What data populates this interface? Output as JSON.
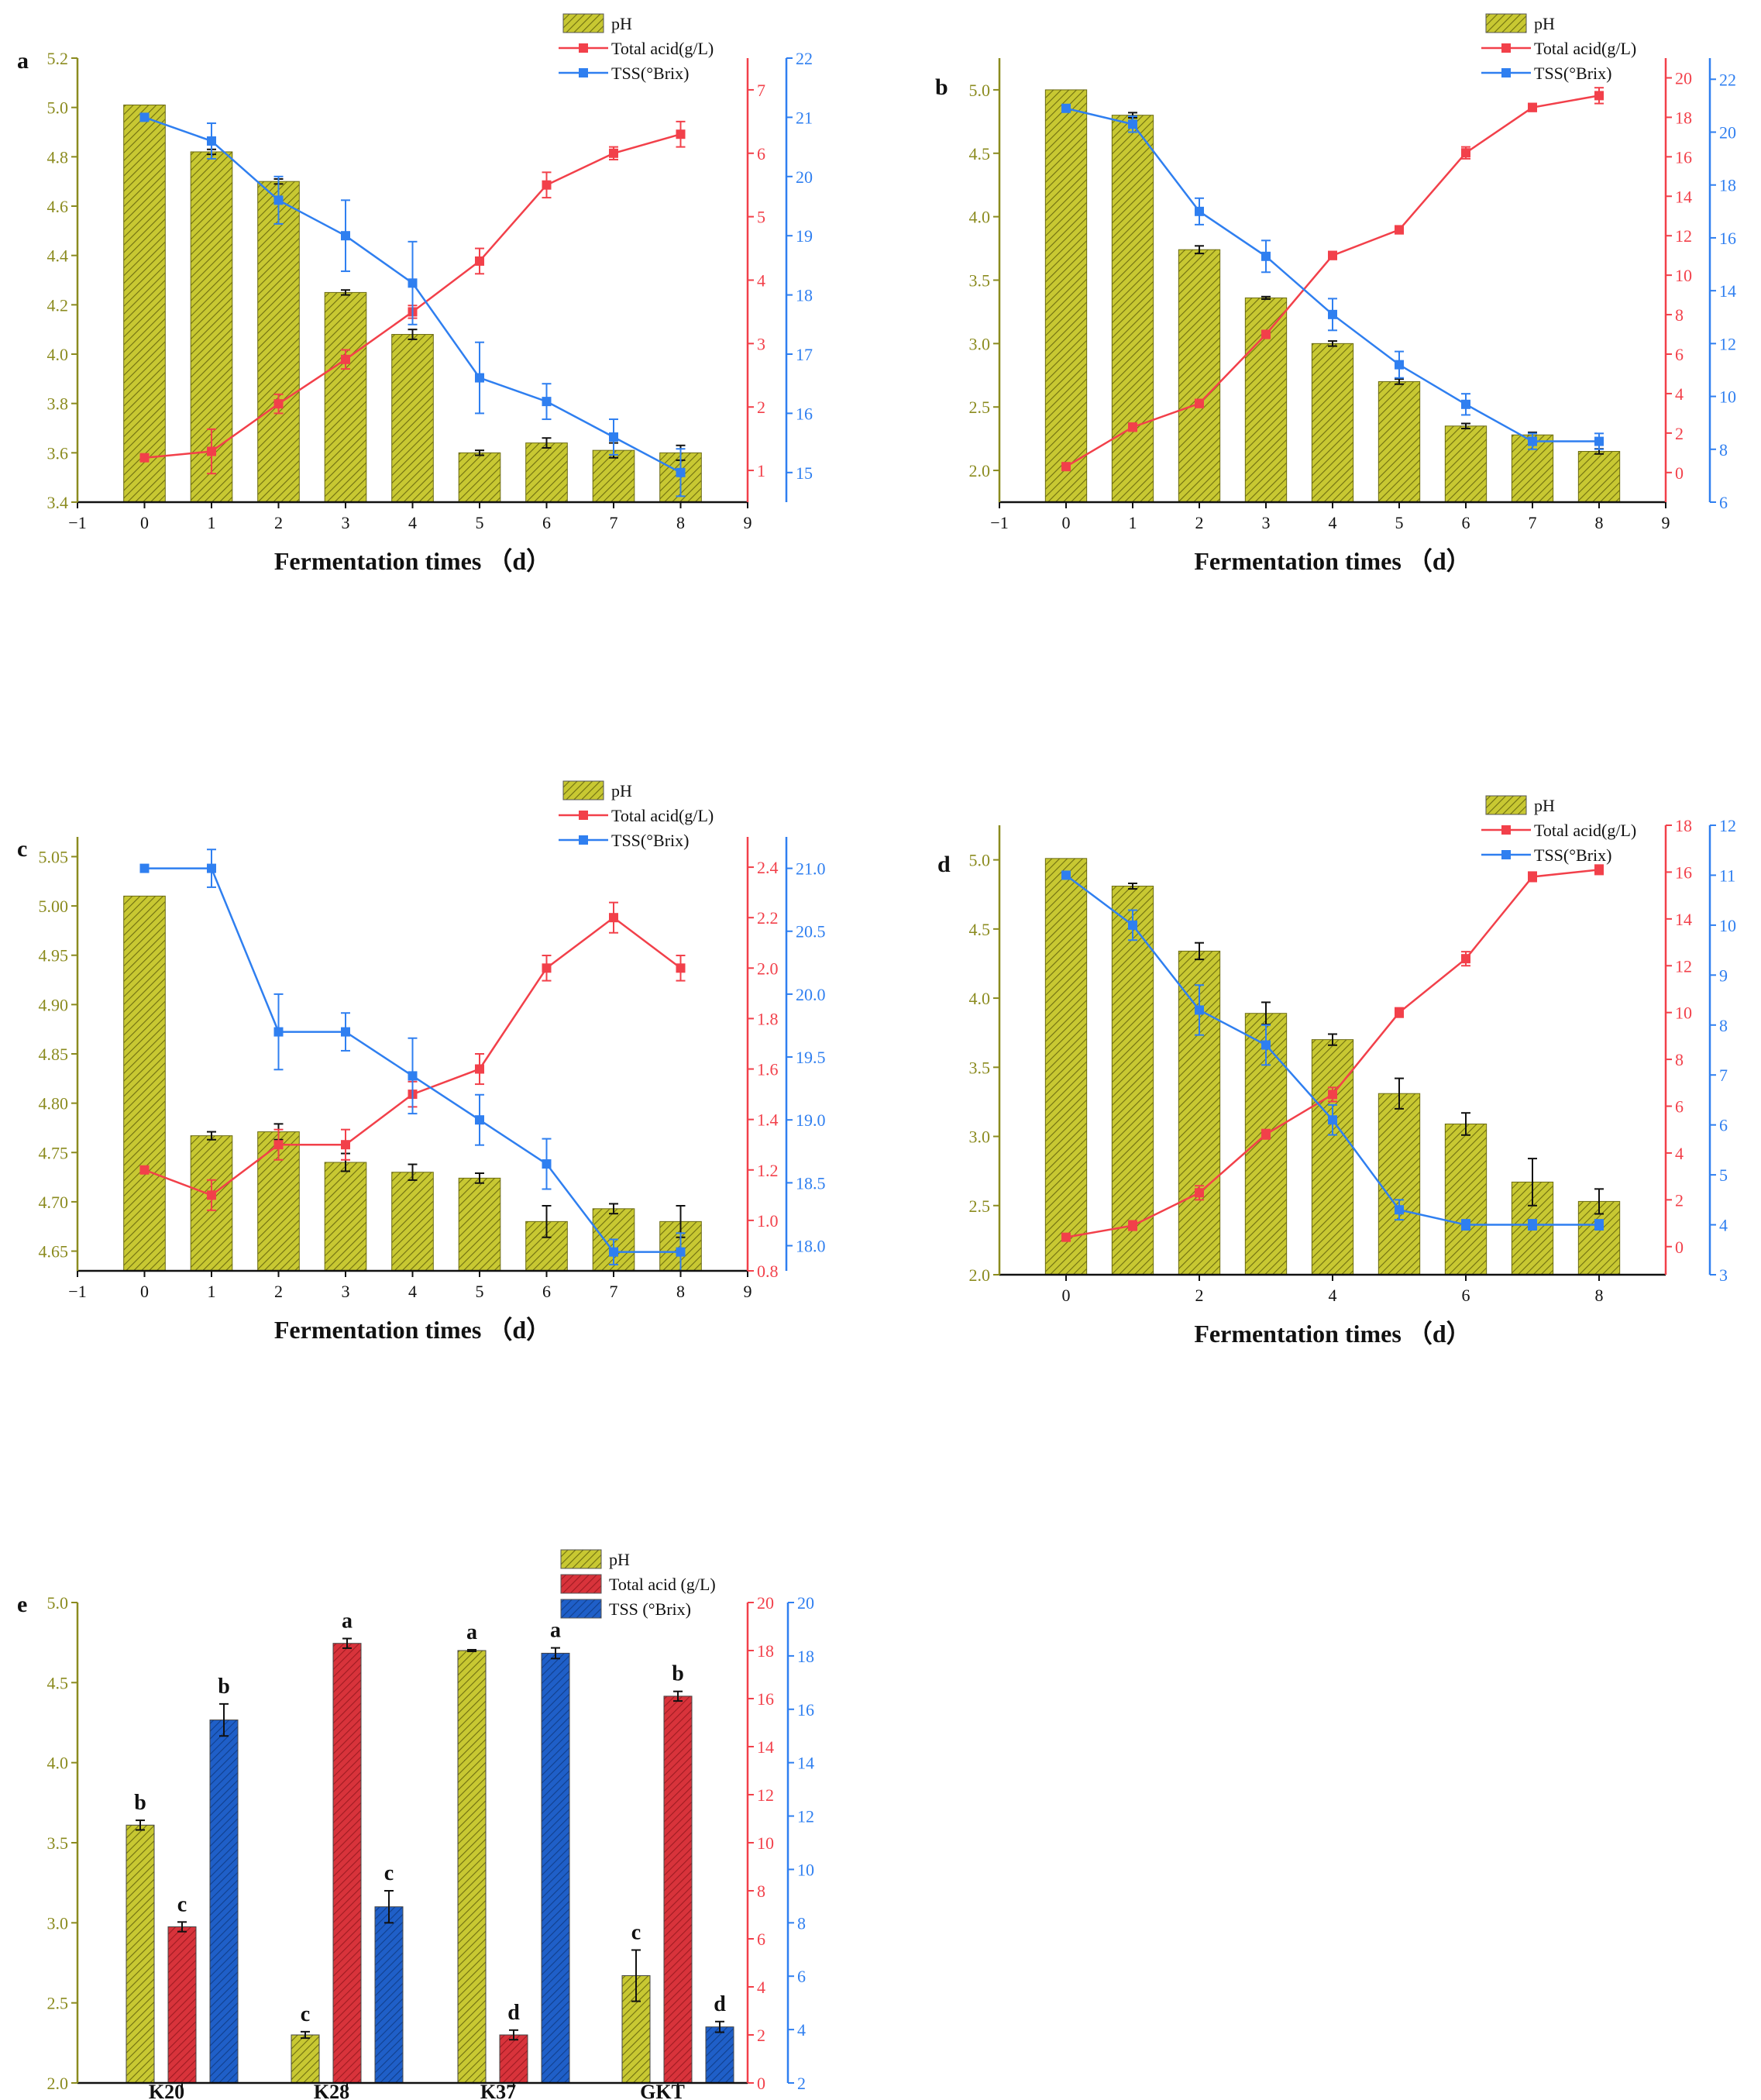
{
  "colors": {
    "ph_fill": "#c8c832",
    "ph_hatch": "#6e6e10",
    "ph_axis": "#8b8b1f",
    "acid": "#f2404a",
    "acid_bar": "#d8333b",
    "tss": "#2f7ff0",
    "tss_bar": "#1f5fc8"
  },
  "legend": {
    "ph": "pH",
    "acid": "Total acid(g/L)",
    "tss": "TSS(°Brix)",
    "acid_e": "Total acid (g/L)",
    "tss_e": "TSS (°Brix)"
  },
  "chart_data": [
    {
      "panel": "a",
      "type": "bar+line",
      "xlabel": "Fermentation times （d）",
      "x_ticks": [
        "−1",
        "0",
        "1",
        "2",
        "3",
        "4",
        "5",
        "6",
        "7",
        "8",
        "9"
      ],
      "x": [
        0,
        1,
        2,
        3,
        4,
        5,
        6,
        7,
        8
      ],
      "ph": {
        "values": [
          5.01,
          4.82,
          4.7,
          4.25,
          4.08,
          3.6,
          3.64,
          3.61,
          3.6
        ],
        "errors": [
          0,
          0.01,
          0.01,
          0.01,
          0.02,
          0.01,
          0.02,
          0.03,
          0.03
        ],
        "ylim": [
          3.4,
          5.2
        ],
        "ticks": [
          "3.4",
          "3.6",
          "3.8",
          "4.0",
          "4.2",
          "4.4",
          "4.6",
          "4.8",
          "5.0",
          "5.2"
        ]
      },
      "acid": {
        "values": [
          1.2,
          1.3,
          2.05,
          2.75,
          3.5,
          4.3,
          5.5,
          6.0,
          6.3
        ],
        "errors": [
          0,
          0.35,
          0.15,
          0.15,
          0.1,
          0.2,
          0.2,
          0.1,
          0.2
        ],
        "ylim": [
          0.5,
          7.5
        ],
        "ticks": [
          "1",
          "2",
          "3",
          "4",
          "5",
          "6",
          "7"
        ]
      },
      "tss": {
        "values": [
          21.0,
          20.6,
          19.6,
          19.0,
          18.2,
          16.6,
          16.2,
          15.6,
          15.0
        ],
        "errors": [
          0,
          0.3,
          0.4,
          0.6,
          0.7,
          0.6,
          0.3,
          0.3,
          0.4
        ],
        "ylim": [
          14.5,
          22
        ],
        "ticks": [
          "15",
          "16",
          "17",
          "18",
          "19",
          "20",
          "21",
          "22"
        ]
      }
    },
    {
      "panel": "b",
      "type": "bar+line",
      "xlabel": "Fermentation times （d）",
      "x_ticks": [
        "−1",
        "0",
        "1",
        "2",
        "3",
        "4",
        "5",
        "6",
        "7",
        "8",
        "9"
      ],
      "x": [
        0,
        1,
        2,
        3,
        4,
        5,
        6,
        7,
        8
      ],
      "ph": {
        "values": [
          5.0,
          4.8,
          3.74,
          3.36,
          3.0,
          2.7,
          2.35,
          2.28,
          2.15
        ],
        "errors": [
          0,
          0.02,
          0.03,
          0.01,
          0.02,
          0.02,
          0.02,
          0.02,
          0.02
        ],
        "ylim": [
          1.75,
          5.25
        ],
        "ticks": [
          "2.0",
          "2.5",
          "3.0",
          "3.5",
          "4.0",
          "4.5",
          "5.0"
        ]
      },
      "acid": {
        "values": [
          0.3,
          2.3,
          3.5,
          7.0,
          11.0,
          12.3,
          16.2,
          18.5,
          19.1
        ],
        "errors": [
          0,
          0.2,
          0.2,
          0.2,
          0.2,
          0.2,
          0.3,
          0.2,
          0.4
        ],
        "ylim": [
          -1.5,
          21
        ],
        "ticks": [
          "0",
          "2",
          "4",
          "6",
          "8",
          "10",
          "12",
          "14",
          "16",
          "18",
          "20"
        ]
      },
      "tss": {
        "values": [
          20.9,
          20.3,
          17.0,
          15.3,
          13.1,
          11.2,
          9.7,
          8.3,
          8.3
        ],
        "errors": [
          0,
          0.3,
          0.5,
          0.6,
          0.6,
          0.5,
          0.4,
          0.3,
          0.3
        ],
        "ylim": [
          6,
          22.8
        ],
        "ticks": [
          "6",
          "8",
          "10",
          "12",
          "14",
          "16",
          "18",
          "20",
          "22"
        ]
      }
    },
    {
      "panel": "c",
      "type": "bar+line",
      "xlabel": "Fermentation times （d）",
      "x_ticks": [
        "−1",
        "0",
        "1",
        "2",
        "3",
        "4",
        "5",
        "6",
        "7",
        "8",
        "9"
      ],
      "x": [
        0,
        1,
        2,
        3,
        4,
        5,
        6,
        7,
        8
      ],
      "ph": {
        "values": [
          5.01,
          4.767,
          4.771,
          4.74,
          4.73,
          4.724,
          4.68,
          4.693,
          4.68
        ],
        "errors": [
          0,
          0.004,
          0.008,
          0.009,
          0.008,
          0.005,
          0.016,
          0.005,
          0.016
        ],
        "ylim": [
          4.63,
          5.07
        ],
        "ticks": [
          "4.65",
          "4.70",
          "4.75",
          "4.80",
          "4.85",
          "4.90",
          "4.95",
          "5.00",
          "5.05"
        ]
      },
      "acid": {
        "values": [
          1.2,
          1.1,
          1.3,
          1.3,
          1.5,
          1.6,
          2.0,
          2.2,
          2.0
        ],
        "errors": [
          0,
          0.06,
          0.06,
          0.06,
          0.05,
          0.06,
          0.05,
          0.06,
          0.05
        ],
        "ylim": [
          0.8,
          2.52
        ],
        "ticks": [
          "0.8",
          "1.0",
          "1.2",
          "1.4",
          "1.6",
          "1.8",
          "2.0",
          "2.2",
          "2.4"
        ]
      },
      "tss": {
        "values": [
          21.0,
          21.0,
          19.7,
          19.7,
          19.35,
          19.0,
          18.65,
          17.95,
          17.95
        ],
        "errors": [
          0,
          0.15,
          0.3,
          0.15,
          0.3,
          0.2,
          0.2,
          0.1,
          0.15
        ],
        "ylim": [
          17.8,
          21.25
        ],
        "ticks": [
          "18.0",
          "18.5",
          "19.0",
          "19.5",
          "20.0",
          "20.5",
          "21.0"
        ]
      }
    },
    {
      "panel": "d",
      "type": "bar+line",
      "xlabel": "Fermentation times （d）",
      "x_ticks": [
        "0",
        "2",
        "4",
        "6",
        "8"
      ],
      "x": [
        0,
        1,
        2,
        3,
        4,
        5,
        6,
        7,
        8
      ],
      "ph": {
        "values": [
          5.01,
          4.81,
          4.34,
          3.89,
          3.7,
          3.31,
          3.09,
          2.67,
          2.53
        ],
        "errors": [
          0,
          0.02,
          0.06,
          0.08,
          0.04,
          0.11,
          0.08,
          0.17,
          0.09
        ],
        "ylim": [
          2.0,
          5.25
        ],
        "ticks": [
          "2.0",
          "2.5",
          "3.0",
          "3.5",
          "4.0",
          "4.5",
          "5.0"
        ]
      },
      "acid": {
        "values": [
          0.4,
          0.9,
          2.3,
          4.8,
          6.5,
          10.0,
          12.3,
          15.8,
          16.1
        ],
        "errors": [
          0,
          0.2,
          0.3,
          0.2,
          0.3,
          0.2,
          0.3,
          0.2,
          0.2
        ],
        "ylim": [
          -1.2,
          18
        ],
        "ticks": [
          "0",
          "2",
          "4",
          "6",
          "8",
          "10",
          "12",
          "14",
          "16",
          "18"
        ]
      },
      "tss": {
        "values": [
          11.0,
          10.0,
          8.3,
          7.6,
          6.1,
          4.3,
          4.0,
          4.0,
          4.0
        ],
        "errors": [
          0,
          0.3,
          0.5,
          0.4,
          0.3,
          0.2,
          0.1,
          0.1,
          0.1
        ],
        "ylim": [
          3,
          12
        ],
        "ticks": [
          "3",
          "4",
          "5",
          "6",
          "7",
          "8",
          "9",
          "10",
          "11",
          "12"
        ]
      }
    },
    {
      "panel": "e",
      "type": "bar",
      "categories": [
        "K20",
        "K28",
        "K37",
        "GKT"
      ],
      "ph": {
        "values": [
          3.61,
          2.3,
          4.7,
          2.67
        ],
        "errors": [
          0.03,
          0.02,
          0.005,
          0.16
        ],
        "letters": [
          "b",
          "c",
          "a",
          "c"
        ],
        "ylim": [
          2.0,
          5.0
        ],
        "ticks": [
          "2.0",
          "2.5",
          "3.0",
          "3.5",
          "4.0",
          "4.5",
          "5.0"
        ]
      },
      "acid": {
        "values": [
          6.5,
          18.3,
          2.0,
          16.1
        ],
        "errors": [
          0.2,
          0.2,
          0.2,
          0.2
        ],
        "letters": [
          "c",
          "a",
          "d",
          "b"
        ],
        "ylim": [
          0,
          20
        ],
        "ticks": [
          "0",
          "2",
          "4",
          "6",
          "8",
          "10",
          "12",
          "14",
          "16",
          "18",
          "20"
        ]
      },
      "tss": {
        "values": [
          15.6,
          8.6,
          18.1,
          4.1
        ],
        "errors": [
          0.6,
          0.6,
          0.2,
          0.2
        ],
        "letters": [
          "b",
          "c",
          "a",
          "d"
        ],
        "ylim": [
          2,
          20
        ],
        "ticks": [
          "2",
          "4",
          "6",
          "8",
          "10",
          "12",
          "14",
          "16",
          "18",
          "20"
        ]
      }
    }
  ]
}
